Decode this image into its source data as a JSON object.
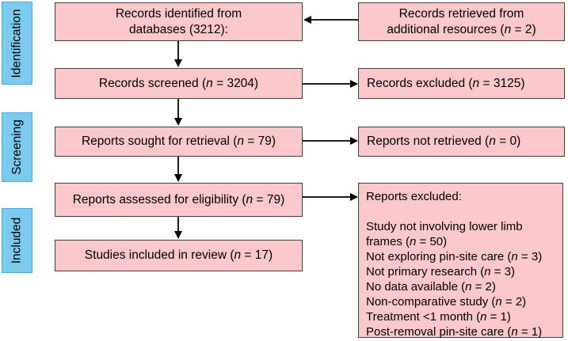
{
  "stages": [
    {
      "label": "Identification"
    },
    {
      "label": "Screening"
    },
    {
      "label": "Included"
    }
  ],
  "boxes": {
    "identified": "Records identified from databases (3212):",
    "retrieved_additional": "Records retrieved from additional resources (n = 2)",
    "screened": "Records screened (n = 3204)",
    "records_excluded": "Records excluded (n = 3125)",
    "sought": "Reports sought for retrieval (n = 79)",
    "not_retrieved": "Reports not retrieved (n = 0)",
    "assessed": "Reports assessed for eligibility (n = 79)",
    "reports_excluded_title": "Reports excluded:",
    "exclusion_reasons": [
      "Study not involving lower limb frames (n = 50)",
      "Not exploring pin-site care (n = 3)",
      "Not primary research (n = 3)",
      "No data available (n = 2)",
      "Non-comparative study (n = 2)",
      "Treatment <1 month (n = 1)",
      "Post-removal pin-site care (n = 1)"
    ],
    "included_studies": "Studies included in review (n = 17)"
  },
  "colors": {
    "node_fill": "#fcc8cb",
    "node_border": "#3f3f3f",
    "stage_fill": "#7ccbef",
    "stage_border": "#52a8d9",
    "arrow": "#000000",
    "text": "#000000",
    "background": "#ffffff"
  }
}
